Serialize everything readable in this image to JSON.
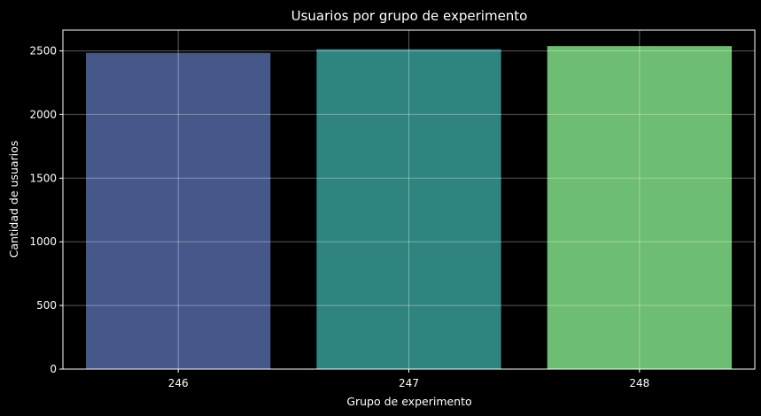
{
  "chart_data": {
    "type": "bar",
    "title": "Usuarios por grupo de experimento",
    "xlabel": "Grupo de experimento",
    "ylabel": "Cantidad de usuarios",
    "categories": [
      "246",
      "247",
      "248"
    ],
    "values": [
      2484,
      2513,
      2537
    ],
    "colors": [
      "#46578a",
      "#2f8480",
      "#6dbd72"
    ],
    "ylim": [
      0,
      2663
    ],
    "yticks": [
      0,
      500,
      1000,
      1500,
      2000,
      2500
    ],
    "ytick_labels": [
      "0",
      "500",
      "1000",
      "1500",
      "2000",
      "2500"
    ],
    "grid": true,
    "background": "#000000",
    "text_color": "#ffffff"
  }
}
